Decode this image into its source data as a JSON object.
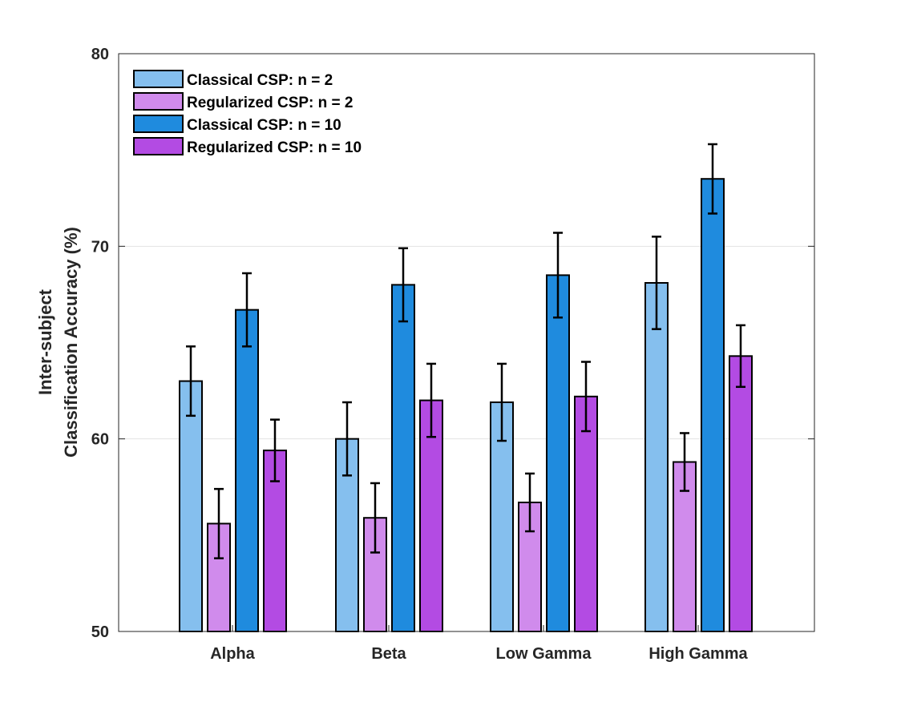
{
  "chart_data": {
    "type": "bar",
    "title": "",
    "xlabel": "",
    "ylabel_lines": [
      "Inter-subject",
      "Classification Accuracy (%)"
    ],
    "ylim": [
      50,
      80
    ],
    "yticks": [
      50,
      60,
      70,
      80
    ],
    "grid": true,
    "legend_position": "top-left",
    "categories": [
      "Alpha",
      "Beta",
      "Low Gamma",
      "High Gamma"
    ],
    "series": [
      {
        "name": "Classical CSP: n = 2",
        "color": "#85BFEE",
        "values": [
          63.0,
          60.0,
          61.9,
          68.1
        ],
        "errors": [
          1.8,
          1.9,
          2.0,
          2.4
        ]
      },
      {
        "name": "Regularized CSP: n = 2",
        "color": "#D08BEC",
        "values": [
          55.6,
          55.9,
          56.7,
          58.8
        ],
        "errors": [
          1.8,
          1.8,
          1.5,
          1.5
        ]
      },
      {
        "name": "Classical CSP: n = 10",
        "color": "#1F8BDE",
        "values": [
          66.7,
          68.0,
          68.5,
          73.5
        ],
        "errors": [
          1.9,
          1.9,
          2.2,
          1.8
        ]
      },
      {
        "name": "Regularized CSP: n = 10",
        "color": "#B34BE3",
        "values": [
          59.4,
          62.0,
          62.2,
          64.3
        ],
        "errors": [
          1.6,
          1.9,
          1.8,
          1.6
        ]
      }
    ]
  }
}
